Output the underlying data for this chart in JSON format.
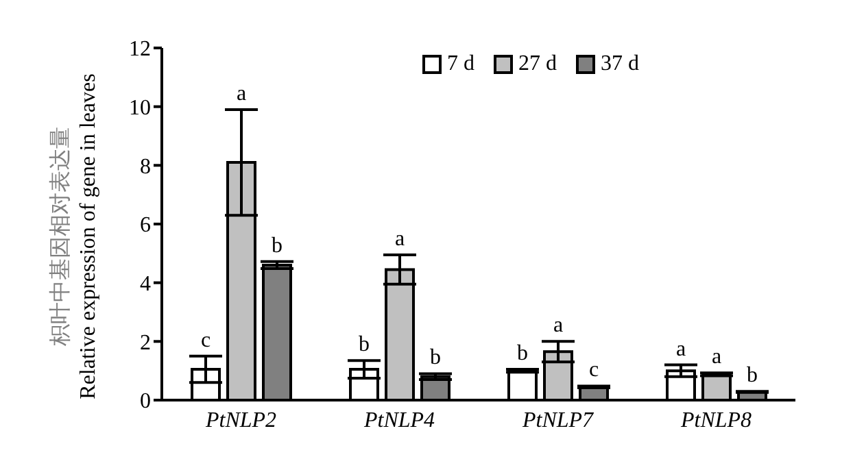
{
  "chart_data": {
    "type": "bar",
    "ylabel": "枳叶中基因相对表达量\nRelative expression of gene in leaves",
    "categories": [
      "PtNLP2",
      "PtNLP4",
      "PtNLP7",
      "PtNLP8"
    ],
    "series": [
      {
        "name": "7 d",
        "color": "#ffffff",
        "values": [
          1.05,
          1.05,
          1.0,
          1.0
        ],
        "errors": [
          0.45,
          0.3,
          0.05,
          0.2
        ],
        "value_labels": [
          "c",
          "b",
          "b",
          "a"
        ]
      },
      {
        "name": "27 d",
        "color": "#c0c0c0",
        "values": [
          8.1,
          4.45,
          1.65,
          0.88
        ],
        "errors": [
          1.8,
          0.5,
          0.35,
          0.05
        ],
        "value_labels": [
          "a",
          "a",
          "a",
          "a"
        ]
      },
      {
        "name": "37 d",
        "color": "#808080",
        "values": [
          4.6,
          0.8,
          0.45,
          0.28
        ],
        "errors": [
          0.12,
          0.1,
          0.03,
          0.02
        ],
        "value_labels": [
          "b",
          "b",
          "c",
          "b"
        ]
      }
    ],
    "ylim": [
      0,
      12
    ],
    "yticks": [
      0,
      2,
      4,
      6,
      8,
      10,
      12
    ],
    "grid": false,
    "legend": "top right"
  }
}
